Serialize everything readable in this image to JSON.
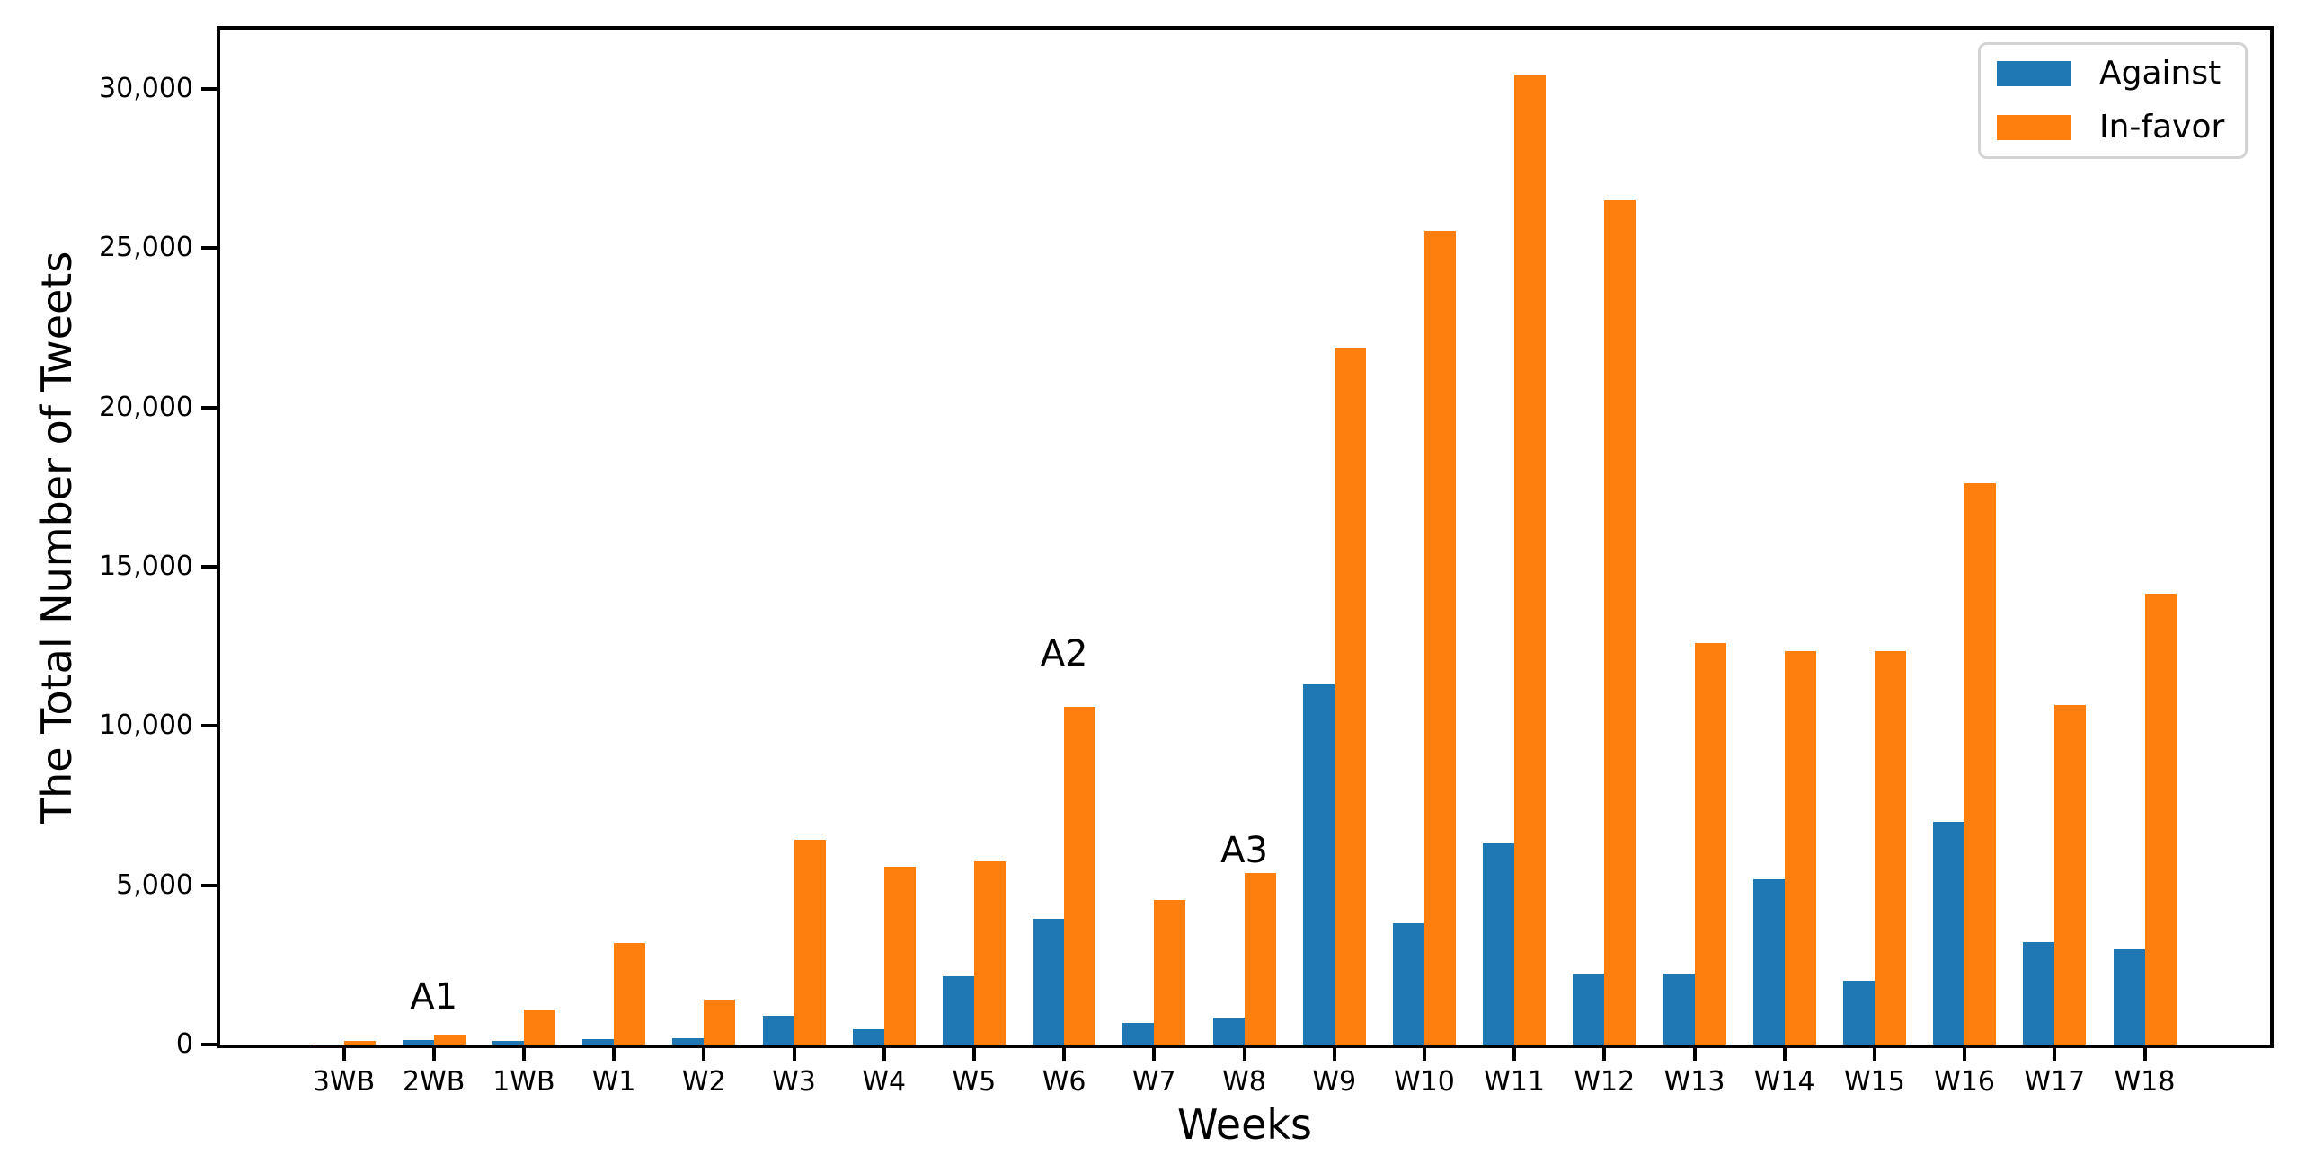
{
  "chart_data": {
    "type": "bar",
    "title": "",
    "xlabel": "Weeks",
    "ylabel": "The Total Number of Tweets",
    "categories": [
      "3WB",
      "2WB",
      "1WB",
      "W1",
      "W2",
      "W3",
      "W4",
      "W5",
      "W6",
      "W7",
      "W8",
      "W9",
      "W10",
      "W11",
      "W12",
      "W13",
      "W14",
      "W15",
      "W16",
      "W17",
      "W18"
    ],
    "series": [
      {
        "name": "Against",
        "color": "#1f77b4",
        "values": [
          10,
          150,
          110,
          160,
          200,
          900,
          480,
          2140,
          3940,
          670,
          850,
          11300,
          3810,
          6310,
          2230,
          2230,
          5180,
          1990,
          6990,
          3210,
          2980
        ]
      },
      {
        "name": "In-favor",
        "color": "#ff7f0e",
        "values": [
          100,
          320,
          1100,
          3200,
          1410,
          6430,
          5570,
          5760,
          10590,
          4530,
          5380,
          21870,
          25550,
          30440,
          26500,
          12600,
          12350,
          12350,
          17620,
          10660,
          14160
        ]
      }
    ],
    "ylim": [
      0,
      31860
    ],
    "yticks": [
      0,
      5000,
      10000,
      15000,
      20000,
      25000,
      30000
    ],
    "ytick_labels": [
      "0",
      "5,000",
      "10,000",
      "15,000",
      "20,000",
      "25,000",
      "30,000"
    ],
    "grid": false,
    "legend_position": "upper right",
    "annotations": [
      {
        "text": "A1",
        "category": "2WB",
        "y": 1500
      },
      {
        "text": "A2",
        "category": "W6",
        "y": 12270
      },
      {
        "text": "A3",
        "category": "W8",
        "y": 6100
      }
    ]
  }
}
